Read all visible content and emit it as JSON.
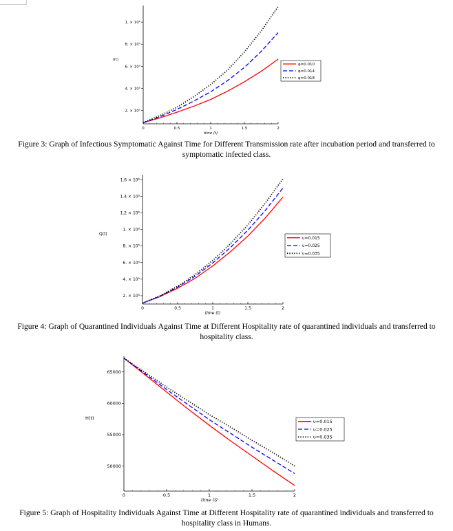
{
  "captions": {
    "fig3_line1": "Figure 3: Graph of Infectious Symptomatic Against Time for Different Transmission rate after incubation period and transferred to",
    "fig3_line2": "symptomatic infected class.",
    "fig4_line1": "Figure 4: Graph of Quarantined Individuals Against Time at Different Hospitality rate of quarantined individuals and transferred to",
    "fig4_line2": "hospitality class.",
    "fig5_line1": "Figure 5: Graph of Hospitality Individuals Against Time at Different Hospitality rate of quarantined individuals and transferred to",
    "fig5_line2": "hospitality class in Humans."
  },
  "chart_data": [
    {
      "type": "line",
      "ylabel": "I(t)",
      "xlabel": "time (t)",
      "xlim": [
        0,
        2
      ],
      "ylim": [
        80000,
        1150000
      ],
      "x_ticks": [
        0,
        0.5,
        1,
        1.5,
        2
      ],
      "x_tick_labels": [
        "0",
        "0.5",
        "1",
        "1.5",
        "2"
      ],
      "y_ticks": [
        200000,
        400000,
        600000,
        800000,
        1000000
      ],
      "y_tick_labels": [
        "2. × 10⁵",
        "4. × 10⁵",
        "6. × 10⁵",
        "8. × 10⁵",
        "1. × 10⁶"
      ],
      "legend_position": "right",
      "x": [
        0,
        0.25,
        0.5,
        0.75,
        1,
        1.25,
        1.5,
        1.75,
        2
      ],
      "series": [
        {
          "name": "φ=0.010",
          "color": "#ff0000",
          "dash": "solid",
          "values": [
            90000,
            135000,
            185000,
            240000,
            300000,
            375000,
            460000,
            555000,
            665000
          ]
        },
        {
          "name": "φ=0.014",
          "color": "#0000ff",
          "dash": "dash",
          "values": [
            90000,
            145000,
            210000,
            285000,
            370000,
            470000,
            590000,
            735000,
            905000
          ]
        },
        {
          "name": "φ=0.018",
          "color": "#000000",
          "dash": "dot",
          "values": [
            90000,
            155000,
            230000,
            325000,
            435000,
            565000,
            730000,
            920000,
            1140000
          ]
        }
      ]
    },
    {
      "type": "line",
      "ylabel": "Q(t)",
      "xlabel": "time (t)",
      "xlim": [
        0,
        2
      ],
      "ylim": [
        100000,
        1660000
      ],
      "x_ticks": [
        0,
        0.5,
        1,
        1.5,
        2
      ],
      "x_tick_labels": [
        "0",
        "0.5",
        "1",
        "1.5",
        "2"
      ],
      "y_ticks": [
        200000,
        400000,
        600000,
        800000,
        1000000,
        1200000,
        1400000,
        1600000
      ],
      "y_tick_labels": [
        "2. × 10⁵",
        "4. × 10⁵",
        "6. × 10⁵",
        "8. × 10⁵",
        "1. × 10⁶",
        "1.2 × 10⁶",
        "1.4 × 10⁶",
        "1.6 × 10⁶"
      ],
      "legend_position": "right",
      "x": [
        0,
        0.25,
        0.5,
        0.75,
        1,
        1.25,
        1.5,
        1.75,
        2
      ],
      "series": [
        {
          "name": "υ=0.015",
          "color": "#ff0000",
          "dash": "solid",
          "values": [
            110000,
            190000,
            290000,
            410000,
            560000,
            730000,
            920000,
            1140000,
            1390000
          ]
        },
        {
          "name": "υ=0.025",
          "color": "#0000ff",
          "dash": "dash",
          "values": [
            110000,
            195000,
            305000,
            435000,
            595000,
            780000,
            990000,
            1230000,
            1500000
          ]
        },
        {
          "name": "υ=0.035",
          "color": "#000000",
          "dash": "dot",
          "values": [
            110000,
            200000,
            315000,
            455000,
            625000,
            825000,
            1055000,
            1320000,
            1610000
          ]
        }
      ]
    },
    {
      "type": "line",
      "ylabel": "H(t)",
      "xlabel": "time (t)",
      "xlim": [
        0,
        2
      ],
      "ylim": [
        46000,
        67500
      ],
      "x_ticks": [
        0,
        0.5,
        1,
        1.5,
        2
      ],
      "x_tick_labels": [
        "0",
        "0.5",
        "1",
        "1.5",
        "2"
      ],
      "y_ticks": [
        50000,
        55000,
        60000,
        65000
      ],
      "y_tick_labels": [
        "50000",
        "55000",
        "60000",
        "65000"
      ],
      "legend_position": "right",
      "x": [
        0,
        0.25,
        0.5,
        0.75,
        1,
        1.25,
        1.5,
        1.75,
        2
      ],
      "series": [
        {
          "name": "υ=0.015",
          "color": "#ff0000",
          "dash": "solid",
          "values": [
            67200,
            64500,
            61800,
            59100,
            56500,
            54000,
            51600,
            49200,
            46900
          ]
        },
        {
          "name": "υ=0.025",
          "color": "#0000ff",
          "dash": "dash",
          "values": [
            67200,
            64700,
            62200,
            59800,
            57400,
            55200,
            53000,
            50900,
            48800
          ]
        },
        {
          "name": "υ=0.035",
          "color": "#000000",
          "dash": "dot",
          "values": [
            67200,
            64900,
            62600,
            60400,
            58200,
            56200,
            54100,
            52100,
            50000
          ]
        }
      ]
    }
  ]
}
